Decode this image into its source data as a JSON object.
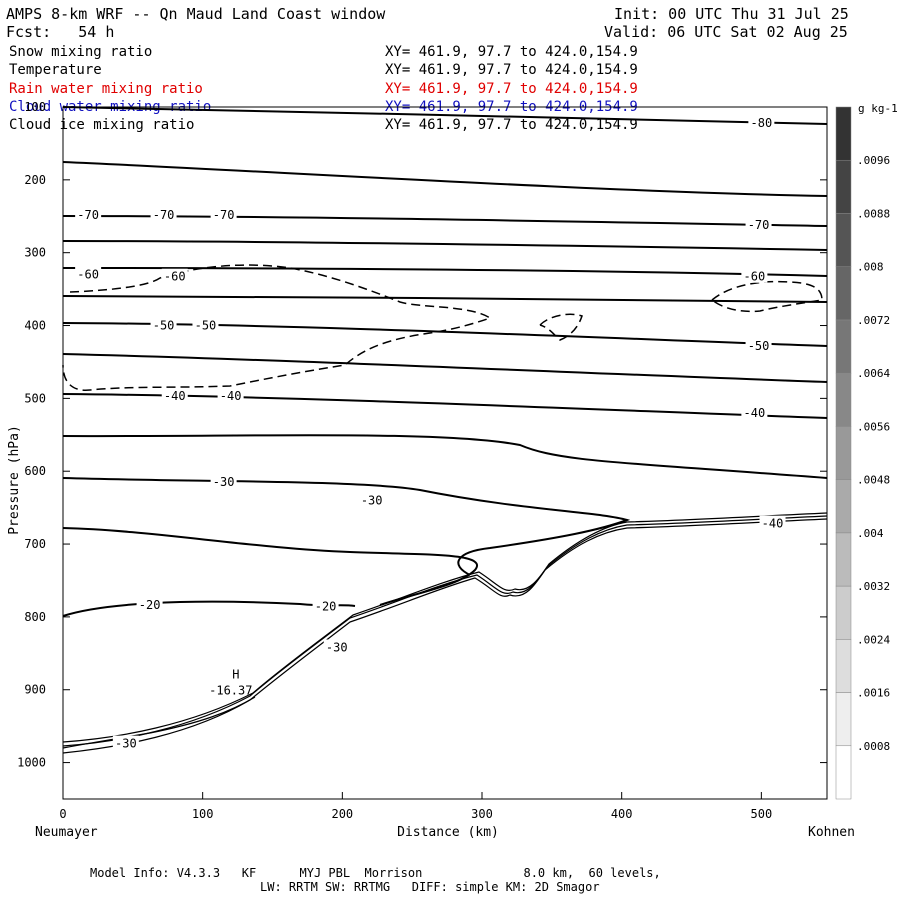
{
  "header": {
    "title": "AMPS 8-km WRF -- Qn Maud Land Coast window",
    "init": "Init: 00 UTC Thu 31 Jul 25",
    "fcst": "Fcst:   54 h",
    "valid": "Valid: 06 UTC Sat 02 Aug 25"
  },
  "variables": [
    {
      "name": "Snow mixing ratio",
      "xy": "XY= 461.9, 97.7 to 424.0,154.9",
      "color": "#000000"
    },
    {
      "name": "Temperature",
      "xy": "XY= 461.9, 97.7 to 424.0,154.9",
      "color": "#000000"
    },
    {
      "name": "Rain water mixing ratio",
      "xy": "XY= 461.9, 97.7 to 424.0,154.9",
      "color": "#e00000"
    },
    {
      "name": "Cloud water mixing ratio",
      "xy": "XY= 461.9, 97.7 to 424.0,154.9",
      "color": "#1010c0"
    },
    {
      "name": "Cloud ice mixing ratio",
      "xy": "XY= 461.9, 97.7 to 424.0,154.9",
      "color": "#000000"
    }
  ],
  "footer": {
    "line1": "Model Info: V4.3.3   KF      MYJ PBL  Morrison              8.0 km,  60 levels,",
    "line2": "LW: RRTM SW: RRTMG   DIFF: simple KM: 2D Smagor"
  },
  "chart_data": {
    "type": "contour",
    "xlabel": "Distance (km)",
    "ylabel": "Pressure (hPa)",
    "x_start_label": "Neumayer",
    "x_end_label": "Kohnen",
    "xlim": [
      0,
      547
    ],
    "ylim_hpa": [
      100,
      1050
    ],
    "x_ticks": [
      0,
      100,
      200,
      300,
      400,
      500
    ],
    "y_ticks": [
      100,
      200,
      300,
      400,
      500,
      600,
      700,
      800,
      900,
      1000
    ],
    "colorbar": {
      "unit": "g kg-1",
      "levels": [
        ".0008",
        ".0016",
        ".0024",
        ".0032",
        ".004",
        ".0048",
        ".0056",
        ".0064",
        ".0072",
        ".008",
        ".0088",
        ".0096"
      ]
    },
    "isotherm_labels": [
      {
        "text": "-80",
        "x": 500,
        "p": 122
      },
      {
        "text": "-70",
        "x": 18,
        "p": 248
      },
      {
        "text": "-70",
        "x": 72,
        "p": 248
      },
      {
        "text": "-70",
        "x": 115,
        "p": 248
      },
      {
        "text": "-70",
        "x": 498,
        "p": 262
      },
      {
        "text": "-60",
        "x": 18,
        "p": 330
      },
      {
        "text": "-60",
        "x": 80,
        "p": 333
      },
      {
        "text": "-60",
        "x": 495,
        "p": 333
      },
      {
        "text": "-50",
        "x": 72,
        "p": 400
      },
      {
        "text": "-50",
        "x": 102,
        "p": 400
      },
      {
        "text": "-50",
        "x": 498,
        "p": 428
      },
      {
        "text": "-40",
        "x": 80,
        "p": 497
      },
      {
        "text": "-40",
        "x": 120,
        "p": 497
      },
      {
        "text": "-40",
        "x": 495,
        "p": 520
      },
      {
        "text": "-30",
        "x": 115,
        "p": 615
      },
      {
        "text": "-30",
        "x": 221,
        "p": 640
      },
      {
        "text": "-40",
        "x": 508,
        "p": 672
      },
      {
        "text": "-20",
        "x": 62,
        "p": 784
      },
      {
        "text": "-20",
        "x": 188,
        "p": 786
      },
      {
        "text": "-30",
        "x": 196,
        "p": 842
      },
      {
        "text": "-30",
        "x": 45,
        "p": 974
      }
    ],
    "high_marker": {
      "symbol": "H",
      "value": "-16.37",
      "x": 118,
      "p": 893
    }
  }
}
